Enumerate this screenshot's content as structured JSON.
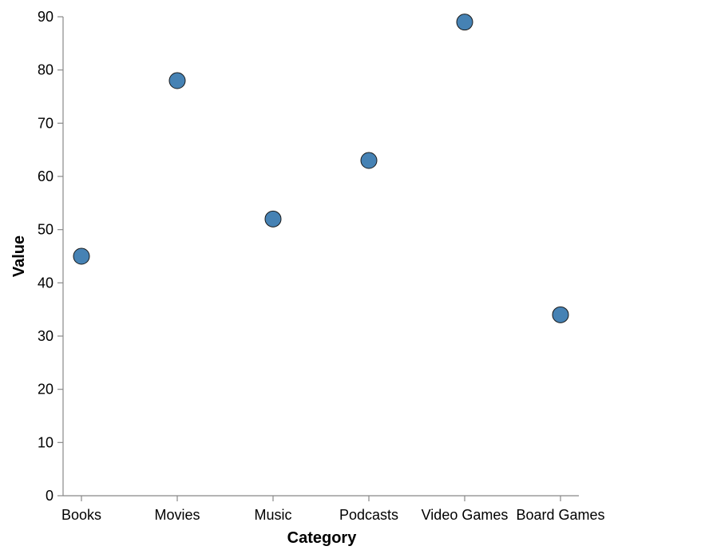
{
  "chart_data": {
    "type": "scatter",
    "categories": [
      "Books",
      "Movies",
      "Music",
      "Podcasts",
      "Video Games",
      "Board Games"
    ],
    "values": [
      45,
      78,
      52,
      63,
      89,
      34
    ],
    "xlabel": "Category",
    "ylabel": "Value",
    "ylim": [
      0,
      90
    ],
    "yticks": [
      "0",
      "10",
      "20",
      "30",
      "40",
      "50",
      "60",
      "70",
      "80",
      "90"
    ],
    "grid": false,
    "legend": "none",
    "colors": {
      "point_fill": "#4682b4",
      "point_stroke": "#1a1a1a",
      "axis": "#888888"
    }
  }
}
